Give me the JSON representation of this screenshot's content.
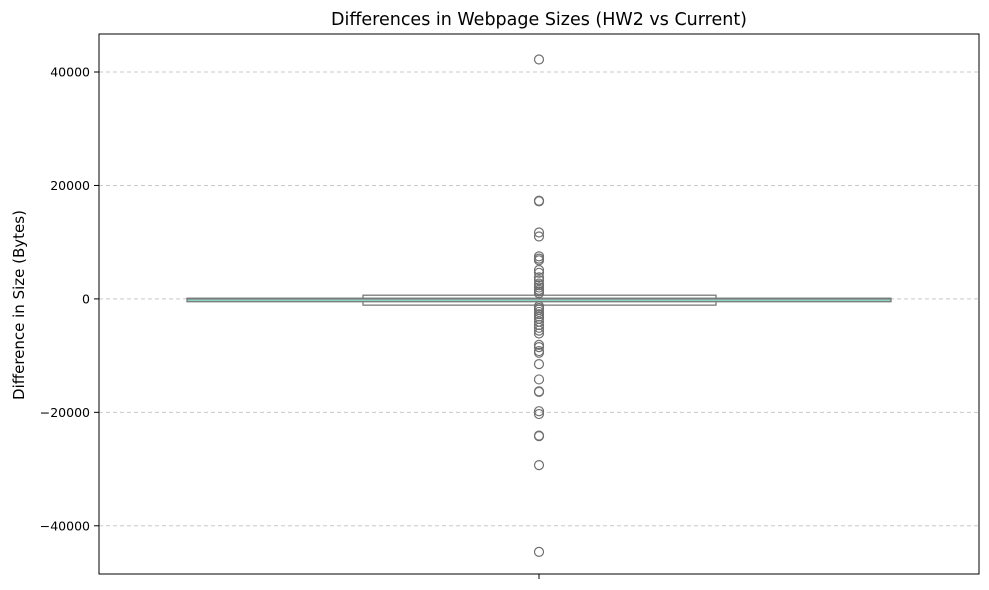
{
  "chart_data": {
    "type": "box",
    "title": "Differences in Webpage Sizes (HW2 vs Current)",
    "xlabel": "",
    "ylabel": "Difference in Size (Bytes)",
    "ylim": [
      -48500,
      46700
    ],
    "yticks": [
      40000,
      20000,
      0,
      -20000,
      -40000
    ],
    "ytick_labels": [
      "40000",
      "20000",
      "0",
      "−20000",
      "−40000"
    ],
    "grid": "y dashed",
    "box": {
      "q1": -120,
      "median": 0,
      "q3": 120,
      "whisker_low": -350,
      "whisker_high": 350
    },
    "inner_band": {
      "low": -1100,
      "high": 650
    },
    "outliers": [
      42200,
      17300,
      17200,
      11700,
      11000,
      7500,
      7100,
      6800,
      5100,
      4600,
      3800,
      3300,
      2700,
      2400,
      2000,
      1600,
      1300,
      1000,
      -1300,
      -1600,
      -1900,
      -2300,
      -2700,
      -3100,
      -3500,
      -4000,
      -4600,
      -5100,
      -5600,
      -6100,
      -8100,
      -8500,
      -9200,
      -9500,
      -11500,
      -14200,
      -16300,
      -16400,
      -19800,
      -20300,
      -24100,
      -24200,
      -29300,
      -44600
    ],
    "colors": {
      "box_fill": "#8fd3c4",
      "box_edge": "#7a7a7a",
      "outlier_edge": "#6f6f6f",
      "grid": "#c8c8c8"
    }
  }
}
